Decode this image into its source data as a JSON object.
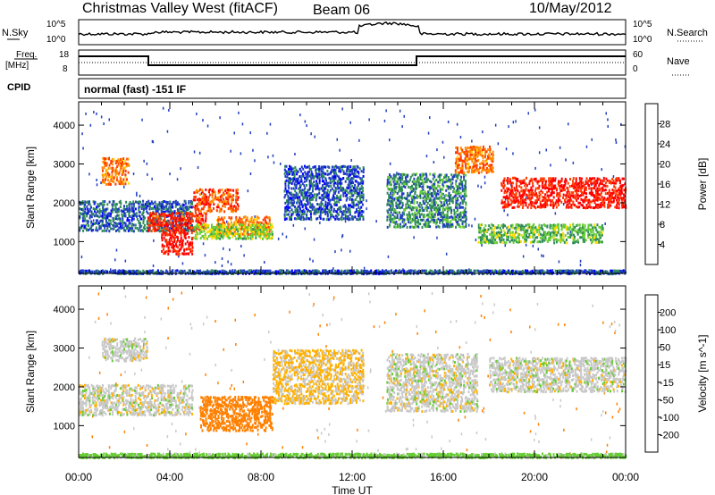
{
  "header": {
    "station": "Christmas Valley West (fitACF)",
    "beam": "Beam 06",
    "date": "10/May/2012"
  },
  "status_panel": {
    "left_label": "N.Sky",
    "right_label": "N.Search",
    "left_ticks": [
      "10^5",
      "10^0"
    ],
    "right_ticks": [
      "10^5",
      "10^0"
    ]
  },
  "freq_panel": {
    "left_label": "Freq.",
    "left_unit": "[MHz]",
    "right_label": "Nave",
    "left_ticks": [
      "18",
      "8"
    ],
    "right_ticks": [
      "60",
      "0"
    ]
  },
  "cpid": {
    "label": "CPID",
    "value": "normal (fast) -151 IF"
  },
  "colors": {
    "power_scale": [
      "#0000ff",
      "#203fbf",
      "#2e8b57",
      "#66cc33",
      "#ffd700",
      "#ff8c00",
      "#ff3b00",
      "#ff0000"
    ],
    "velocity_scale": [
      "#1a1aff",
      "#2040c0",
      "#2e8b57",
      "#66cc33",
      "#c8c8c8",
      "#ffb000",
      "#ff8000",
      "#ff4000",
      "#ff0000"
    ]
  },
  "chart_data": [
    {
      "type": "heatmap",
      "panel": "power",
      "ylabel": "Slant Range [km]",
      "ylim": [
        180,
        4600
      ],
      "xlim": [
        0,
        24
      ],
      "x_ticks": [
        "00:00",
        "04:00",
        "08:00",
        "12:00",
        "16:00",
        "20:00",
        "00:00"
      ],
      "y_ticks": [
        "1000",
        "2000",
        "3000",
        "4000"
      ],
      "colorbar_label": "Power [dB]",
      "colorbar_ticks": [
        "4",
        "8",
        "12",
        "16",
        "20",
        "24",
        "28"
      ],
      "colorbar_range": [
        0,
        30
      ],
      "features": [
        {
          "t_start": 0.0,
          "t_end": 5.0,
          "range_start": 1300,
          "range_end": 2100,
          "value": 7
        },
        {
          "t_start": 1.0,
          "t_end": 2.2,
          "range_start": 2500,
          "range_end": 3200,
          "value": 22
        },
        {
          "t_start": 3.0,
          "t_end": 5.6,
          "range_start": 1300,
          "range_end": 1800,
          "value": 26
        },
        {
          "t_start": 3.6,
          "t_end": 5.0,
          "range_start": 700,
          "range_end": 1300,
          "value": 28
        },
        {
          "t_start": 5.0,
          "t_end": 7.0,
          "range_start": 1800,
          "range_end": 2400,
          "value": 24
        },
        {
          "t_start": 6.0,
          "t_end": 8.4,
          "range_start": 1200,
          "range_end": 1700,
          "value": 22
        },
        {
          "t_start": 5.0,
          "t_end": 8.5,
          "range_start": 1100,
          "range_end": 1500,
          "value": 14
        },
        {
          "t_start": 9.0,
          "t_end": 12.5,
          "range_start": 1600,
          "range_end": 3000,
          "value": 6
        },
        {
          "t_start": 13.5,
          "t_end": 17.0,
          "range_start": 1400,
          "range_end": 2800,
          "value": 9
        },
        {
          "t_start": 16.5,
          "t_end": 18.2,
          "range_start": 2800,
          "range_end": 3500,
          "value": 22
        },
        {
          "t_start": 18.5,
          "t_end": 24.0,
          "range_start": 1900,
          "range_end": 2700,
          "value": 27
        },
        {
          "t_start": 17.5,
          "t_end": 23.0,
          "range_start": 1000,
          "range_end": 1500,
          "value": 12
        },
        {
          "t_start": 0.0,
          "t_end": 24.0,
          "range_start": 200,
          "range_end": 300,
          "value": 6
        }
      ]
    },
    {
      "type": "heatmap",
      "panel": "velocity",
      "ylabel": "Slant Range [km]",
      "xlabel": "Time UT",
      "ylim": [
        180,
        4600
      ],
      "xlim": [
        0,
        24
      ],
      "x_ticks": [
        "00:00",
        "04:00",
        "08:00",
        "12:00",
        "16:00",
        "20:00",
        "00:00"
      ],
      "y_ticks": [
        "1000",
        "2000",
        "3000",
        "4000"
      ],
      "colorbar_label": "Velocity [m s^-1]",
      "colorbar_ticks": [
        "200",
        "100",
        "50",
        "15",
        "-15",
        "-50",
        "-100",
        "-200"
      ],
      "colorbar_range": [
        -250,
        250
      ],
      "features": [
        {
          "t_start": 0.0,
          "t_end": 5.0,
          "range_start": 1300,
          "range_end": 2100,
          "value": 0
        },
        {
          "t_start": 1.0,
          "t_end": 3.0,
          "range_start": 2700,
          "range_end": 3300,
          "value": 0
        },
        {
          "t_start": 5.3,
          "t_end": 8.5,
          "range_start": 900,
          "range_end": 1800,
          "value": -80
        },
        {
          "t_start": 8.5,
          "t_end": 12.5,
          "range_start": 1600,
          "range_end": 3000,
          "value": -20
        },
        {
          "t_start": 13.5,
          "t_end": 17.5,
          "range_start": 1400,
          "range_end": 2900,
          "value": 0
        },
        {
          "t_start": 18.0,
          "t_end": 24.0,
          "range_start": 1900,
          "range_end": 2800,
          "value": 0
        },
        {
          "t_start": 0.0,
          "t_end": 24.0,
          "range_start": 200,
          "range_end": 320,
          "value": 30
        }
      ]
    }
  ]
}
